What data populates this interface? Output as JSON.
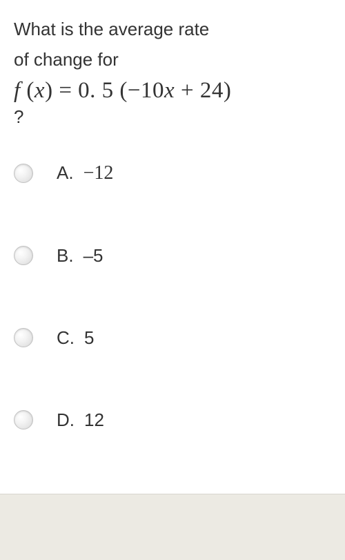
{
  "question": {
    "line1": "What is the average rate",
    "line2": "of change for",
    "formula_parts": {
      "f": "f",
      "open": "(",
      "x1": "x",
      "close_eq": ") = 0. 5 (",
      "minus": "−10",
      "x2": "x",
      "plus": " + 24)",
      "qmark": "?"
    }
  },
  "options": [
    {
      "letter": "A.",
      "value": "−12",
      "serif": true
    },
    {
      "letter": "B.",
      "value": "–5",
      "serif": false
    },
    {
      "letter": "C.",
      "value": "5",
      "serif": false
    },
    {
      "letter": "D.",
      "value": "12",
      "serif": false
    }
  ],
  "colors": {
    "text": "#333333",
    "background": "#ffffff",
    "footer": "#eceae3",
    "radio_border": "#c2c2c2"
  }
}
